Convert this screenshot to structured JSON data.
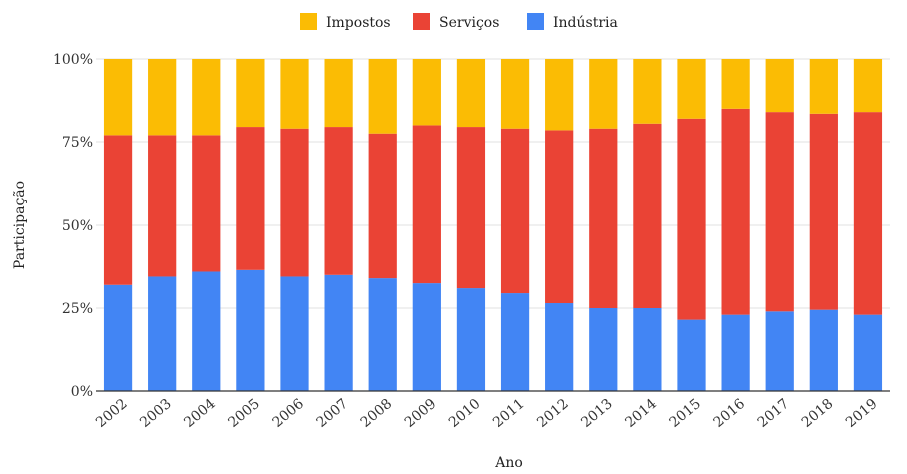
{
  "chart_data": {
    "type": "bar",
    "stacked": true,
    "percent_stacked": true,
    "categories": [
      "2002",
      "2003",
      "2004",
      "2005",
      "2006",
      "2007",
      "2008",
      "2009",
      "2010",
      "2011",
      "2012",
      "2013",
      "2014",
      "2015",
      "2016",
      "2017",
      "2018",
      "2019"
    ],
    "series": [
      {
        "name": "Indústria",
        "color": "#4285f4",
        "values": [
          32,
          34.5,
          36,
          36.5,
          34.5,
          35,
          34,
          32.5,
          31,
          29.5,
          26.5,
          25,
          25,
          21.5,
          23,
          24,
          24.5,
          23
        ]
      },
      {
        "name": "Serviços",
        "color": "#ea4335",
        "values": [
          45,
          42.5,
          41,
          43,
          44.5,
          44.5,
          43.5,
          47.5,
          48.5,
          49.5,
          52,
          54,
          55.5,
          60.5,
          62,
          60,
          59,
          61
        ]
      },
      {
        "name": "Impostos",
        "color": "#fbbc04",
        "values": [
          23,
          23,
          23,
          20.5,
          21,
          20.5,
          22.5,
          20,
          20.5,
          21,
          21.5,
          21,
          19.5,
          18,
          15,
          16,
          16.5,
          16
        ]
      }
    ],
    "legend_order": [
      "Impostos",
      "Serviços",
      "Indústria"
    ],
    "legend_position": "top-center",
    "xlabel": "Ano",
    "ylabel": "Participação",
    "ylim": [
      0,
      100
    ],
    "yticks": [
      "0%",
      "25%",
      "50%",
      "75%",
      "100%"
    ],
    "ytick_values": [
      0,
      25,
      50,
      75,
      100
    ],
    "grid": true
  }
}
